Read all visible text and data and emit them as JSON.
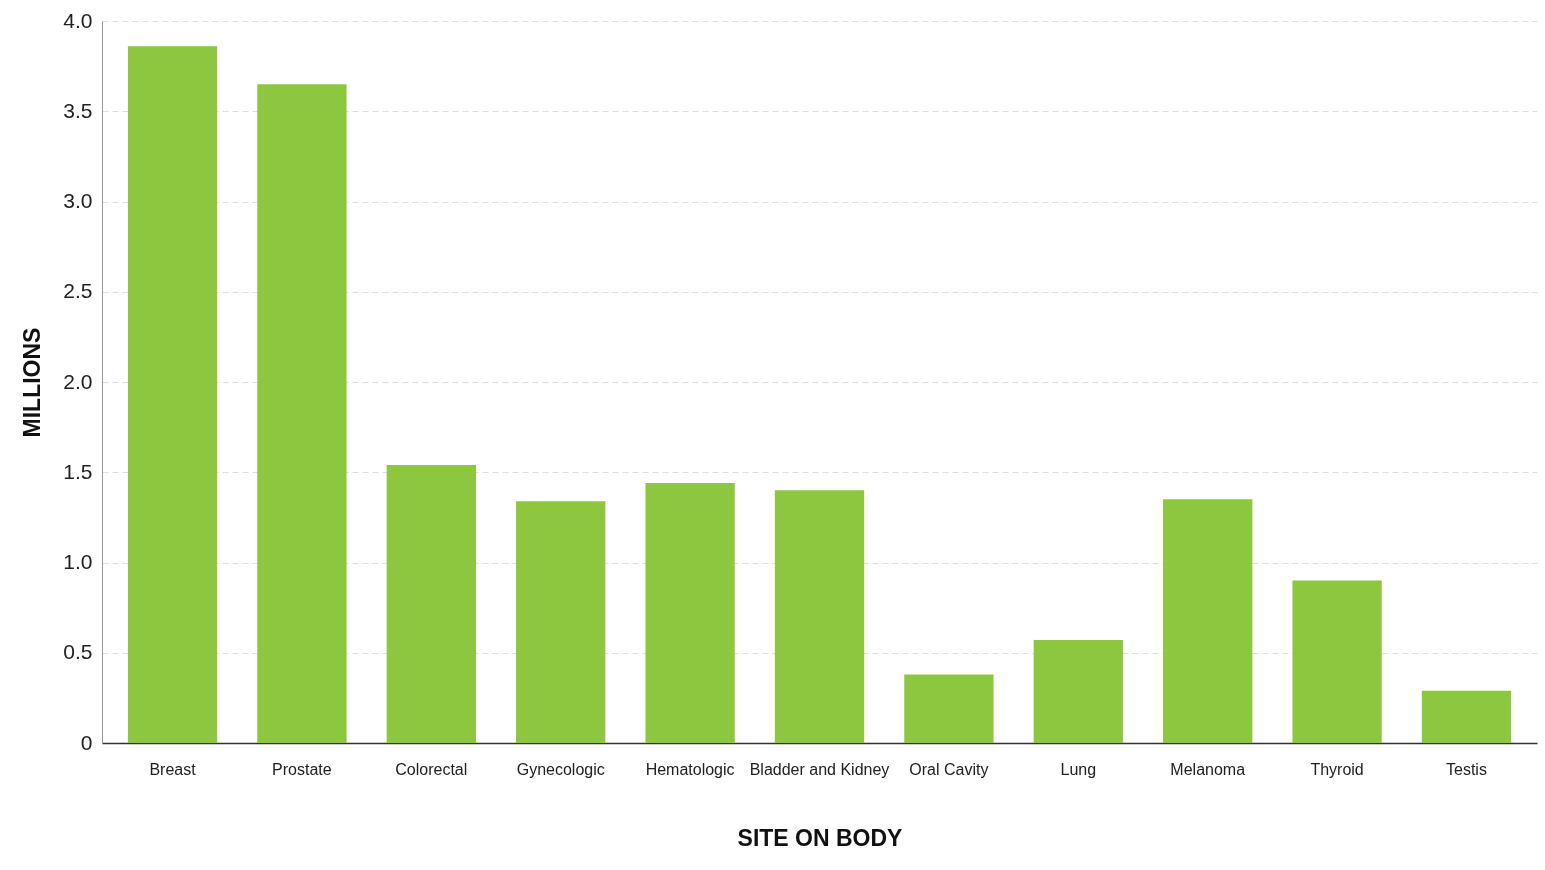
{
  "chart_data": {
    "type": "bar",
    "xlabel": "SITE ON BODY",
    "ylabel": "MILLIONS",
    "categories": [
      "Breast",
      "Prostate",
      "Colorectal",
      "Gynecologic",
      "Hematologic",
      "Bladder and Kidney",
      "Oral Cavity",
      "Lung",
      "Melanoma",
      "Thyroid",
      "Testis"
    ],
    "values": [
      3.86,
      3.65,
      1.54,
      1.34,
      1.44,
      1.4,
      0.38,
      0.57,
      1.35,
      0.9,
      0.29
    ],
    "color": "#8dc63f",
    "ylim": [
      0,
      4
    ],
    "yticks": [
      0,
      {
        "value": 0.5,
        "label": "0.5"
      },
      {
        "value": 1,
        "label": "1.0"
      },
      {
        "value": 1.5,
        "label": "1.5"
      },
      {
        "value": 2,
        "label": "2.0"
      },
      {
        "value": 2.5,
        "label": "2.5"
      },
      {
        "value": 3,
        "label": "3.0"
      },
      {
        "value": 3.5,
        "label": "3.5"
      },
      {
        "value": 4,
        "label": "4.0"
      }
    ],
    "grid": "y"
  }
}
